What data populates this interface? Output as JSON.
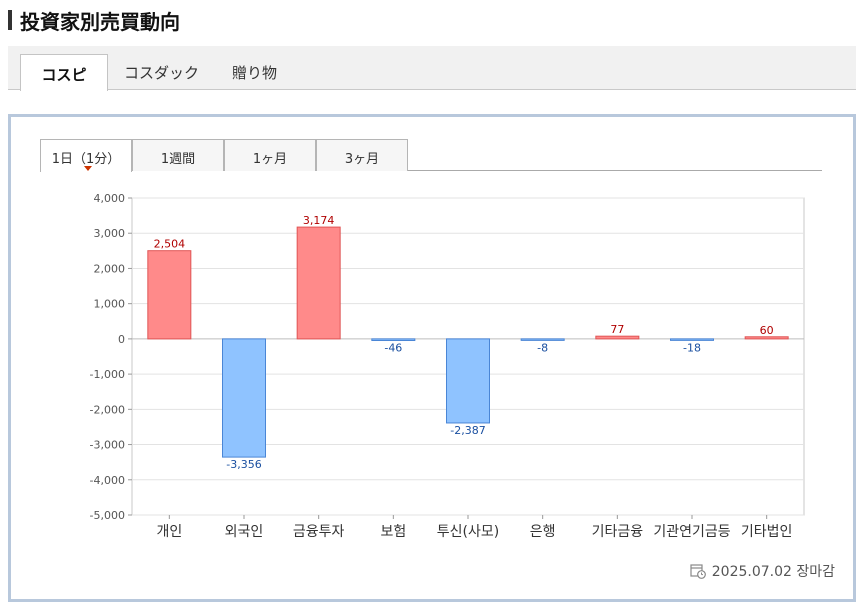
{
  "header": {
    "title": "投資家別売買動向"
  },
  "market_tabs": [
    {
      "label": "コスピ",
      "active": true
    },
    {
      "label": "コスダック",
      "active": false
    },
    {
      "label": "贈り物",
      "active": false
    }
  ],
  "period_tabs": [
    {
      "label": "1日（1分）",
      "active": true
    },
    {
      "label": "1週間",
      "active": false
    },
    {
      "label": "1ヶ月",
      "active": false
    },
    {
      "label": "3ヶ月",
      "active": false
    }
  ],
  "footer": {
    "timestamp": "2025.07.02 장마감"
  },
  "colors": {
    "positive_fill": "#ff8a8a",
    "positive_stroke": "#e05555",
    "positive_label": "#b00000",
    "negative_fill": "#8fc3ff",
    "negative_stroke": "#4a86d6",
    "negative_label": "#1a4fa0",
    "grid": "#e3e3e3",
    "axis": "#999999"
  },
  "chart_data": {
    "type": "bar",
    "categories": [
      "개인",
      "외국인",
      "금융투자",
      "보험",
      "투신(사모)",
      "은행",
      "기타금융",
      "기관연기금등",
      "기타법인"
    ],
    "values": [
      2504,
      -3356,
      3174,
      -46,
      -2387,
      -8,
      77,
      -18,
      60
    ],
    "data_labels": [
      "2,504",
      "-3,356",
      "3,174",
      "-46",
      "-2,387",
      "-8",
      "77",
      "-18",
      "60"
    ],
    "y_ticks": [
      4000,
      3000,
      2000,
      1000,
      0,
      -1000,
      -2000,
      -3000,
      -4000,
      -5000
    ],
    "y_tick_labels": [
      "4,000",
      "3,000",
      "2,000",
      "1,000",
      "0",
      "-1,000",
      "-2,000",
      "-3,000",
      "-4,000",
      "-5,000"
    ],
    "ylim": [
      -5000,
      4000
    ],
    "grid": true,
    "title": "",
    "xlabel": "",
    "ylabel": ""
  }
}
